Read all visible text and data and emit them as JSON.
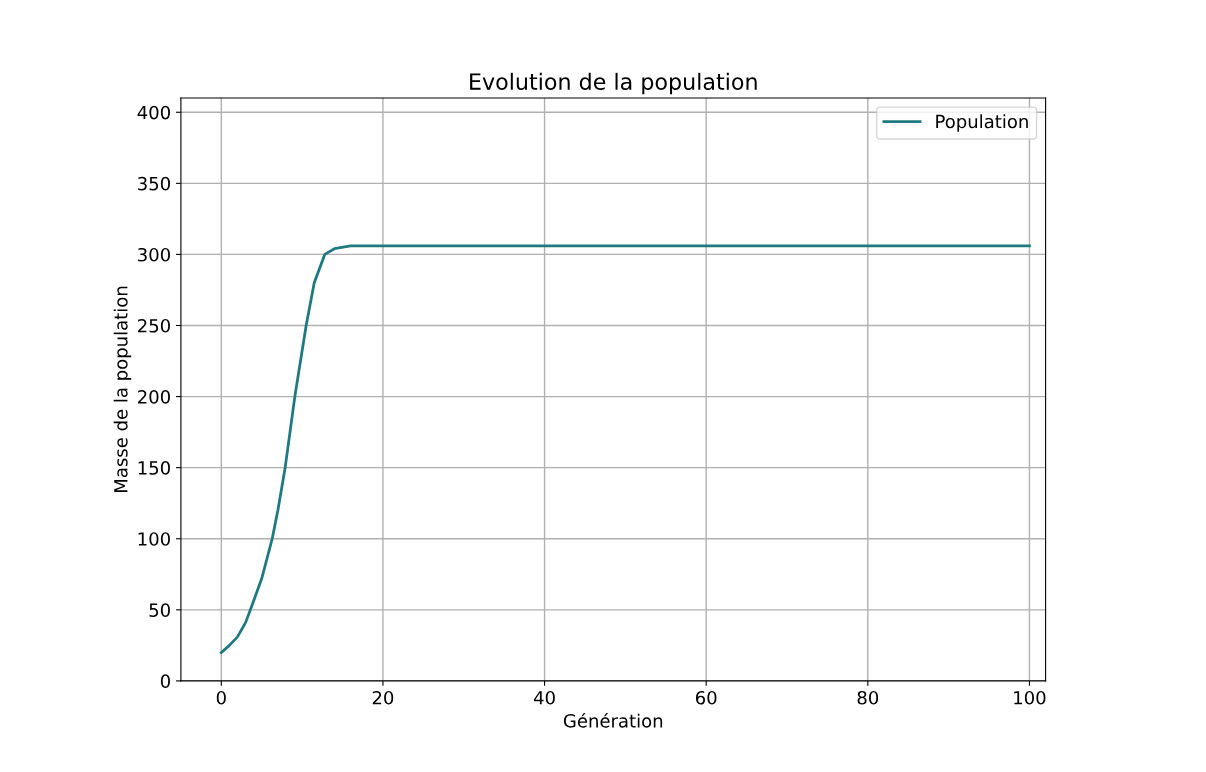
{
  "chart_data": {
    "type": "line",
    "title": "Evolution de la population",
    "xlabel": "Génération",
    "ylabel": "Masse de la population",
    "series": [
      {
        "name": "Population",
        "color": "#1f7a80",
        "x": [
          0,
          1,
          2,
          3,
          3.6,
          5,
          6.3,
          7,
          7.9,
          9.1,
          10.5,
          11.5,
          12.8,
          14,
          16,
          20,
          40,
          60,
          80,
          100
        ],
        "values": [
          20,
          25,
          31,
          41,
          50,
          72,
          100,
          120,
          150,
          200,
          250,
          280,
          300,
          304,
          306,
          306,
          306,
          306,
          306,
          306
        ]
      }
    ],
    "xlim": [
      -5,
      102
    ],
    "xticks": [
      0,
      20,
      40,
      60,
      80,
      100
    ],
    "ylim": [
      0,
      410
    ],
    "yticks": [
      0,
      50,
      100,
      150,
      200,
      250,
      300,
      350,
      400
    ],
    "grid": true,
    "legend": "top right",
    "marker": "none",
    "line_style": "solid"
  }
}
